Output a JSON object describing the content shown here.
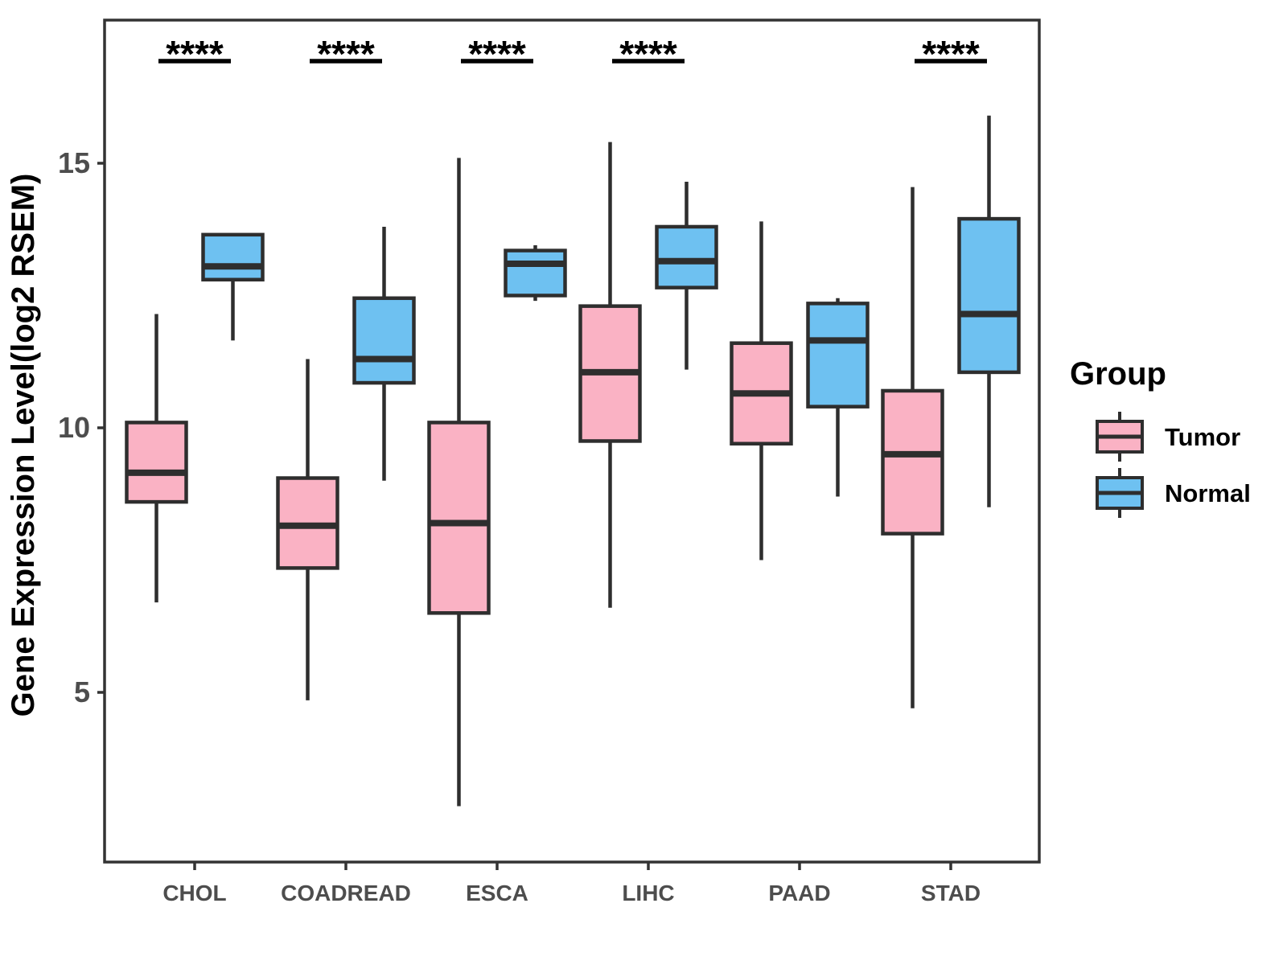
{
  "chart_data": {
    "type": "boxplot",
    "title": "",
    "ylabel": "Gene Expression Level(log2 RSEM)",
    "xlabel": "",
    "yticks": [
      5,
      10,
      15
    ],
    "ylim": [
      1.8,
      17.7
    ],
    "grid": false,
    "legend_position": "right",
    "categories": [
      "CHOL",
      "COADREAD",
      "ESCA",
      "LIHC",
      "PAAD",
      "STAD"
    ],
    "significance": [
      "****",
      "****",
      "****",
      "****",
      "",
      "****"
    ],
    "series": [
      {
        "name": "Tumor",
        "color": "#FAB2C4",
        "boxes": [
          {
            "category": "CHOL",
            "whisker_low": 6.7,
            "q1": 8.6,
            "median": 9.15,
            "q3": 10.1,
            "whisker_high": 12.15
          },
          {
            "category": "COADREAD",
            "whisker_low": 4.85,
            "q1": 7.35,
            "median": 8.15,
            "q3": 9.05,
            "whisker_high": 11.3
          },
          {
            "category": "ESCA",
            "whisker_low": 2.85,
            "q1": 6.5,
            "median": 8.2,
            "q3": 10.1,
            "whisker_high": 15.1
          },
          {
            "category": "LIHC",
            "whisker_low": 6.6,
            "q1": 9.75,
            "median": 11.05,
            "q3": 12.3,
            "whisker_high": 15.4
          },
          {
            "category": "PAAD",
            "whisker_low": 7.5,
            "q1": 9.7,
            "median": 10.65,
            "q3": 11.6,
            "whisker_high": 13.9
          },
          {
            "category": "STAD",
            "whisker_low": 4.7,
            "q1": 8.0,
            "median": 9.5,
            "q3": 10.7,
            "whisker_high": 14.55
          }
        ]
      },
      {
        "name": "Normal",
        "color": "#6EC1F1",
        "boxes": [
          {
            "category": "CHOL",
            "whisker_low": 11.65,
            "q1": 12.8,
            "median": 13.05,
            "q3": 13.65,
            "whisker_high": 13.65
          },
          {
            "category": "COADREAD",
            "whisker_low": 9.0,
            "q1": 10.85,
            "median": 11.3,
            "q3": 12.45,
            "whisker_high": 13.8
          },
          {
            "category": "ESCA",
            "whisker_low": 12.4,
            "q1": 12.5,
            "median": 13.1,
            "q3": 13.35,
            "whisker_high": 13.45
          },
          {
            "category": "LIHC",
            "whisker_low": 11.1,
            "q1": 12.65,
            "median": 13.15,
            "q3": 13.8,
            "whisker_high": 14.65
          },
          {
            "category": "PAAD",
            "whisker_low": 8.7,
            "q1": 10.4,
            "median": 11.65,
            "q3": 12.35,
            "whisker_high": 12.45
          },
          {
            "category": "STAD",
            "whisker_low": 8.5,
            "q1": 11.05,
            "median": 12.15,
            "q3": 13.95,
            "whisker_high": 15.9
          }
        ]
      }
    ],
    "legend": {
      "title": "Group",
      "entries": [
        {
          "label": "Tumor",
          "color": "#FAB2C4"
        },
        {
          "label": "Normal",
          "color": "#6EC1F1"
        }
      ]
    },
    "colors": {
      "box_stroke": "#2E2E2E",
      "panel_border": "#333333",
      "tick_label": "#4D4D4D",
      "axis_title": "#000000",
      "significance": "#000000"
    }
  }
}
